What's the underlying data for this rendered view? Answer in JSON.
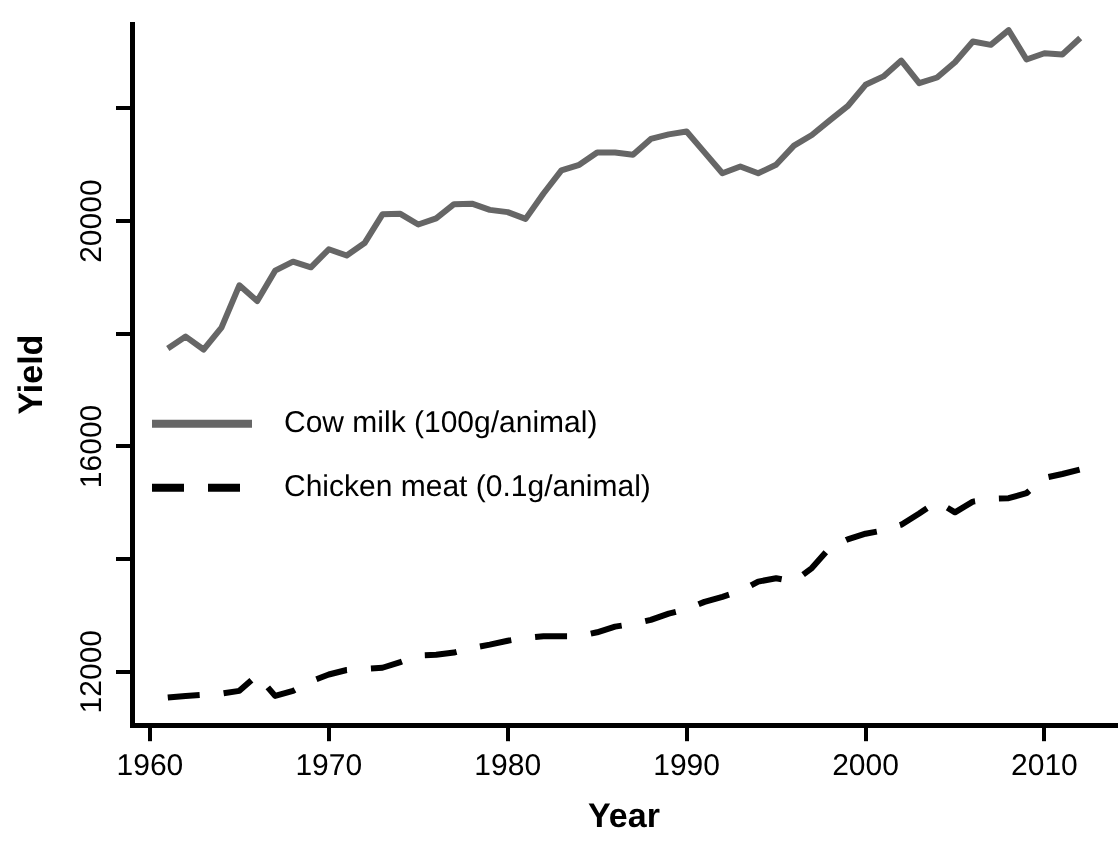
{
  "chart_data": {
    "type": "line",
    "xlabel": "Year",
    "ylabel": "Yield",
    "x": [
      1961,
      1962,
      1963,
      1964,
      1965,
      1966,
      1967,
      1968,
      1969,
      1970,
      1971,
      1972,
      1973,
      1974,
      1975,
      1976,
      1977,
      1978,
      1979,
      1980,
      1981,
      1982,
      1983,
      1984,
      1985,
      1986,
      1987,
      1988,
      1989,
      1990,
      1991,
      1992,
      1993,
      1994,
      1995,
      1996,
      1997,
      1998,
      1999,
      2000,
      2001,
      2002,
      2003,
      2004,
      2005,
      2006,
      2007,
      2008,
      2009,
      2010,
      2011,
      2012
    ],
    "series": [
      {
        "name": "Cow milk (100g/animal)",
        "color": "#666666",
        "line_style": "solid",
        "values": [
          17740,
          17950,
          17720,
          18110,
          18860,
          18580,
          19120,
          19280,
          19180,
          19500,
          19390,
          19610,
          20120,
          20130,
          19940,
          20050,
          20300,
          20310,
          20200,
          20160,
          20040,
          20490,
          20900,
          21000,
          21220,
          21220,
          21180,
          21460,
          21540,
          21590,
          21220,
          20850,
          20970,
          20850,
          21000,
          21340,
          21530,
          21790,
          22040,
          22420,
          22570,
          22850,
          22450,
          22550,
          22820,
          23190,
          23130,
          23390,
          22870,
          22980,
          22960,
          23250
        ]
      },
      {
        "name": "Chicken meat (0.1g/animal)",
        "color": "#000000",
        "line_style": "dashed",
        "values": [
          11540,
          11570,
          11590,
          11610,
          11660,
          11940,
          11570,
          11660,
          11830,
          11950,
          12030,
          12050,
          12070,
          12170,
          12290,
          12300,
          12340,
          12420,
          12480,
          12550,
          12600,
          12630,
          12630,
          12630,
          12700,
          12800,
          12850,
          12920,
          13030,
          13110,
          13240,
          13330,
          13430,
          13600,
          13660,
          13600,
          13840,
          14200,
          14350,
          14450,
          14510,
          14610,
          14810,
          15020,
          14830,
          15020,
          15070,
          15080,
          15170,
          15440,
          15510,
          15590
        ]
      }
    ],
    "xlim": [
      1959,
      2014
    ],
    "xticks": [
      1960,
      1970,
      1980,
      1990,
      2000,
      2010
    ],
    "ylim": [
      11050,
      23500
    ],
    "yticks": [
      12000,
      {
        "value": 14000,
        "label": null
      },
      16000,
      {
        "value": 18000,
        "label": null
      },
      20000,
      {
        "value": 22000,
        "label": null
      }
    ],
    "grid": false,
    "legend": "left",
    "marker": "none"
  }
}
